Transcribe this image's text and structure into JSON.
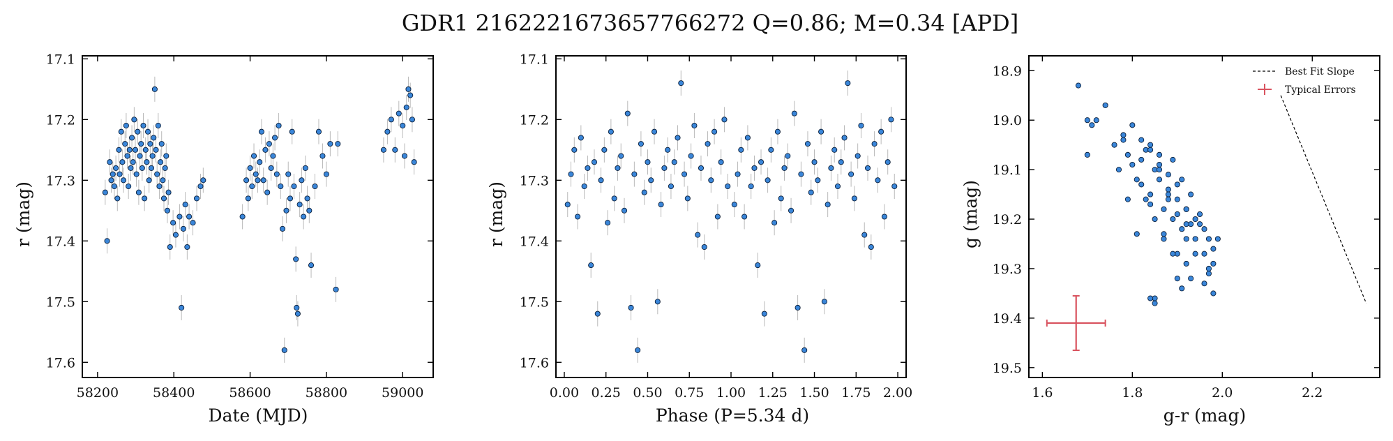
{
  "title": "GDR1 2162221673657766272  Q=0.86; M=0.34 [APD]",
  "colors": {
    "point_fill": "#3a86d9",
    "point_edge": "#0b1f3a",
    "error_bar": "#b9b9b9",
    "typical_error": "#d9535f",
    "fit_line": "#000000"
  },
  "chart_data": [
    {
      "type": "scatter",
      "title": "",
      "xlabel": "Date (MJD)",
      "ylabel": "r (mag)",
      "xlim": [
        58160,
        59080
      ],
      "ylim": [
        17.625,
        17.095
      ],
      "y_inverted": true,
      "xticks": [
        58200,
        58400,
        58600,
        58800,
        59000
      ],
      "xticklabels": [
        "58200",
        "58400",
        "58600",
        "58800",
        "59000"
      ],
      "yticks": [
        17.1,
        17.2,
        17.3,
        17.4,
        17.5,
        17.6
      ],
      "yticklabels": [
        "17.1",
        "17.2",
        "17.3",
        "17.4",
        "17.5",
        "17.6"
      ],
      "grid": false,
      "error_bars": true,
      "points_description": "seasonal clusters of r-band photometry",
      "x": [
        58220,
        58225,
        58232,
        58236,
        58240,
        58244,
        58248,
        58252,
        58256,
        58258,
        58262,
        58265,
        58268,
        58272,
        58275,
        58278,
        58281,
        58284,
        58287,
        58290,
        58293,
        58296,
        58299,
        58302,
        58305,
        58308,
        58311,
        58314,
        58317,
        58320,
        58323,
        58326,
        58329,
        58332,
        58335,
        58338,
        58341,
        58344,
        58347,
        58350,
        58353,
        58356,
        58359,
        58362,
        58365,
        58368,
        58371,
        58374,
        58377,
        58380,
        58383,
        58386,
        58390,
        58398,
        58405,
        58415,
        58420,
        58425,
        58430,
        58435,
        58440,
        58450,
        58460,
        58470,
        58477,
        58580,
        58590,
        58595,
        58600,
        58605,
        58610,
        58615,
        58620,
        58625,
        58630,
        58635,
        58640,
        58645,
        58650,
        58655,
        58660,
        58665,
        58670,
        58675,
        58680,
        58685,
        58690,
        58695,
        58700,
        58705,
        58710,
        58715,
        58720,
        58722,
        58725,
        58730,
        58735,
        58740,
        58745,
        58750,
        58755,
        58760,
        58770,
        58780,
        58790,
        58800,
        58810,
        58825,
        58830,
        58950,
        58960,
        58970,
        58980,
        58990,
        59000,
        59005,
        59010,
        59015,
        59020,
        59025,
        59030
      ],
      "y": [
        17.32,
        17.4,
        17.27,
        17.3,
        17.29,
        17.31,
        17.28,
        17.33,
        17.25,
        17.29,
        17.22,
        17.27,
        17.3,
        17.24,
        17.21,
        17.26,
        17.31,
        17.25,
        17.28,
        17.23,
        17.27,
        17.2,
        17.25,
        17.29,
        17.22,
        17.32,
        17.26,
        17.24,
        17.28,
        17.21,
        17.33,
        17.25,
        17.27,
        17.22,
        17.3,
        17.24,
        17.28,
        17.26,
        17.23,
        17.15,
        17.25,
        17.29,
        17.21,
        17.31,
        17.27,
        17.24,
        17.3,
        17.33,
        17.28,
        17.26,
        17.35,
        17.32,
        17.41,
        17.37,
        17.39,
        17.36,
        17.51,
        17.38,
        17.34,
        17.41,
        17.36,
        17.37,
        17.33,
        17.31,
        17.3,
        17.36,
        17.3,
        17.33,
        17.28,
        17.31,
        17.26,
        17.29,
        17.3,
        17.27,
        17.22,
        17.3,
        17.25,
        17.32,
        17.24,
        17.28,
        17.26,
        17.23,
        17.29,
        17.21,
        17.31,
        17.38,
        17.58,
        17.35,
        17.29,
        17.33,
        17.22,
        17.31,
        17.43,
        17.51,
        17.52,
        17.34,
        17.3,
        17.36,
        17.28,
        17.33,
        17.35,
        17.44,
        17.31,
        17.22,
        17.26,
        17.29,
        17.24,
        17.48,
        17.24,
        17.25,
        17.22,
        17.2,
        17.25,
        17.19,
        17.21,
        17.26,
        17.18,
        17.15,
        17.16,
        17.2,
        17.27
      ]
    },
    {
      "type": "scatter",
      "title": "",
      "xlabel": "Phase (P=5.34 d)",
      "ylabel": "r (mag)",
      "xlim": [
        -0.05,
        2.05
      ],
      "ylim": [
        17.625,
        17.095
      ],
      "y_inverted": true,
      "xticks": [
        0.0,
        0.25,
        0.5,
        0.75,
        1.0,
        1.25,
        1.5,
        1.75,
        2.0
      ],
      "xticklabels": [
        "0.00",
        "0.25",
        "0.50",
        "0.75",
        "1.00",
        "1.25",
        "1.50",
        "1.75",
        "2.00"
      ],
      "yticks": [
        17.1,
        17.2,
        17.3,
        17.4,
        17.5,
        17.6
      ],
      "yticklabels": [
        "17.1",
        "17.2",
        "17.3",
        "17.4",
        "17.5",
        "17.6"
      ],
      "grid": false,
      "error_bars": true,
      "phase_period_d": 5.34,
      "x": [
        0.02,
        0.04,
        0.06,
        0.08,
        0.1,
        0.12,
        0.14,
        0.16,
        0.18,
        0.2,
        0.22,
        0.24,
        0.26,
        0.28,
        0.3,
        0.32,
        0.34,
        0.36,
        0.38,
        0.4,
        0.42,
        0.44,
        0.46,
        0.48,
        0.5,
        0.52,
        0.54,
        0.56,
        0.58,
        0.6,
        0.62,
        0.64,
        0.66,
        0.68,
        0.7,
        0.72,
        0.74,
        0.76,
        0.78,
        0.8,
        0.82,
        0.84,
        0.86,
        0.88,
        0.9,
        0.92,
        0.94,
        0.96,
        0.98,
        1.02,
        1.04,
        1.06,
        1.08,
        1.1,
        1.12,
        1.14,
        1.16,
        1.18,
        1.2,
        1.22,
        1.24,
        1.26,
        1.28,
        1.3,
        1.32,
        1.34,
        1.36,
        1.38,
        1.4,
        1.42,
        1.44,
        1.46,
        1.48,
        1.5,
        1.52,
        1.54,
        1.56,
        1.58,
        1.6,
        1.62,
        1.64,
        1.66,
        1.68,
        1.7,
        1.72,
        1.74,
        1.76,
        1.78,
        1.8,
        1.82,
        1.84,
        1.86,
        1.88,
        1.9,
        1.92,
        1.94,
        1.96,
        1.98
      ],
      "y": [
        17.34,
        17.29,
        17.25,
        17.36,
        17.23,
        17.31,
        17.28,
        17.44,
        17.27,
        17.52,
        17.3,
        17.25,
        17.37,
        17.22,
        17.33,
        17.28,
        17.26,
        17.35,
        17.19,
        17.51,
        17.29,
        17.58,
        17.24,
        17.32,
        17.27,
        17.3,
        17.22,
        17.5,
        17.34,
        17.28,
        17.25,
        17.31,
        17.27,
        17.23,
        17.14,
        17.29,
        17.33,
        17.26,
        17.21,
        17.39,
        17.28,
        17.41,
        17.24,
        17.3,
        17.22,
        17.36,
        17.27,
        17.2,
        17.31,
        17.34,
        17.29,
        17.25,
        17.36,
        17.23,
        17.31,
        17.28,
        17.44,
        17.27,
        17.52,
        17.3,
        17.25,
        17.37,
        17.22,
        17.33,
        17.28,
        17.26,
        17.35,
        17.19,
        17.51,
        17.29,
        17.58,
        17.24,
        17.32,
        17.27,
        17.3,
        17.22,
        17.5,
        17.34,
        17.28,
        17.25,
        17.31,
        17.27,
        17.23,
        17.14,
        17.29,
        17.33,
        17.26,
        17.21,
        17.39,
        17.28,
        17.41,
        17.24,
        17.3,
        17.22,
        17.36,
        17.27,
        17.2,
        17.31
      ]
    },
    {
      "type": "scatter",
      "title": "",
      "xlabel": "g-r (mag)",
      "ylabel": "g (mag)",
      "xlim": [
        1.57,
        2.35
      ],
      "ylim": [
        19.52,
        18.87
      ],
      "y_inverted": true,
      "xticks": [
        1.6,
        1.8,
        2.0,
        2.2
      ],
      "xticklabels": [
        "1.6",
        "1.8",
        "2.0",
        "2.2"
      ],
      "yticks": [
        18.9,
        19.0,
        19.1,
        19.2,
        19.3,
        19.4,
        19.5
      ],
      "yticklabels": [
        "18.9",
        "19.0",
        "19.1",
        "19.2",
        "19.3",
        "19.4",
        "19.5"
      ],
      "grid": false,
      "x": [
        1.68,
        1.7,
        1.71,
        1.72,
        1.74,
        1.7,
        1.76,
        1.77,
        1.78,
        1.79,
        1.8,
        1.81,
        1.82,
        1.83,
        1.84,
        1.85,
        1.86,
        1.87,
        1.88,
        1.89,
        1.9,
        1.91,
        1.92,
        1.93,
        1.94,
        1.95,
        1.96,
        1.97,
        1.98,
        1.99,
        1.78,
        1.8,
        1.82,
        1.84,
        1.86,
        1.88,
        1.9,
        1.92,
        1.94,
        1.82,
        1.84,
        1.86,
        1.88,
        1.9,
        1.92,
        1.96,
        1.98,
        1.83,
        1.85,
        1.89,
        1.91,
        1.93,
        1.95,
        1.97,
        1.87,
        1.81,
        1.79,
        1.84,
        1.86,
        1.88,
        1.9,
        1.92,
        1.94,
        1.96,
        1.85,
        1.87,
        1.89,
        1.91,
        1.93,
        1.98,
        1.84,
        1.85,
        1.9,
        1.92,
        1.97
      ],
      "y": [
        18.93,
        19.0,
        19.01,
        19.0,
        18.97,
        19.07,
        19.05,
        19.1,
        19.03,
        19.07,
        19.01,
        19.12,
        19.08,
        19.06,
        19.15,
        19.1,
        19.12,
        19.18,
        19.14,
        19.2,
        19.16,
        19.22,
        19.18,
        19.21,
        19.24,
        19.19,
        19.22,
        19.24,
        19.26,
        19.24,
        19.04,
        19.09,
        19.13,
        19.17,
        19.07,
        19.11,
        19.13,
        19.18,
        19.2,
        19.04,
        19.06,
        19.1,
        19.15,
        19.19,
        19.24,
        19.27,
        19.29,
        19.16,
        19.2,
        19.08,
        19.12,
        19.15,
        19.21,
        19.3,
        19.23,
        19.23,
        19.16,
        19.05,
        19.09,
        19.16,
        19.27,
        19.21,
        19.27,
        19.33,
        19.36,
        19.24,
        19.27,
        19.34,
        19.32,
        19.35,
        19.36,
        19.37,
        19.32,
        19.29,
        19.31
      ],
      "fit_line": {
        "label": "Best Fit Slope",
        "x": [
          2.13,
          2.32
        ],
        "y": [
          18.95,
          19.37
        ]
      },
      "typical_error": {
        "label": "Typical Errors",
        "x": 1.675,
        "y": 19.41,
        "xerr": 0.065,
        "yerr": 0.055
      },
      "legend_position": "top-right",
      "legend": [
        {
          "label": "Best Fit Slope",
          "kind": "dashed-line"
        },
        {
          "label": "Typical Errors",
          "kind": "errorbar"
        }
      ]
    }
  ]
}
